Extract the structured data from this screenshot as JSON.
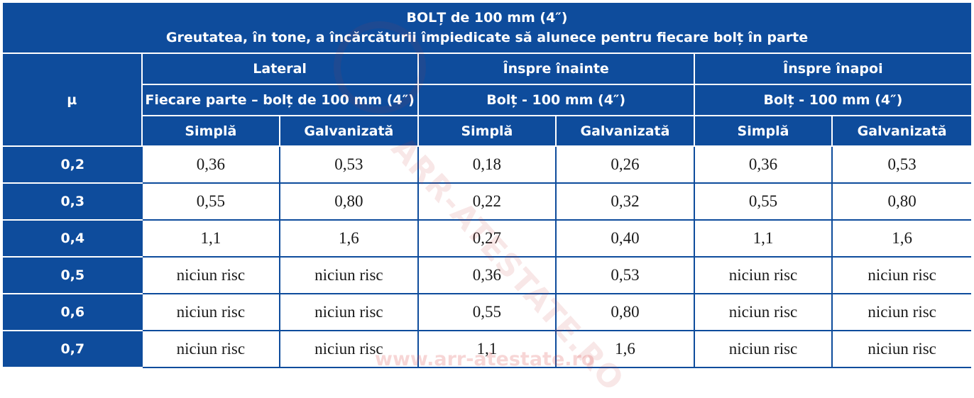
{
  "title": {
    "line1": "BOLȚ de 100 mm (4″)",
    "line2": "Greutatea, în tone, a încărcăturii împiedicate să alunece pentru fiecare bolț în parte"
  },
  "header": {
    "mu_label": "µ",
    "groups": [
      {
        "label": "Lateral",
        "sublabel": "Fiecare parte – bolț de 100 mm (4″)"
      },
      {
        "label": "Înspre înainte",
        "sublabel": "Bolț - 100 mm (4″)"
      },
      {
        "label": "Înspre înapoi",
        "sublabel": "Bolț - 100 mm (4″)"
      }
    ],
    "columns": [
      "Simplă",
      "Galvanizată",
      "Simplă",
      "Galvanizată",
      "Simplă",
      "Galvanizată"
    ]
  },
  "rows": [
    {
      "mu": "0,2",
      "values": [
        "0,36",
        "0,53",
        "0,18",
        "0,26",
        "0,36",
        "0,53"
      ]
    },
    {
      "mu": "0,3",
      "values": [
        "0,55",
        "0,80",
        "0,22",
        "0,32",
        "0,55",
        "0,80"
      ]
    },
    {
      "mu": "0,4",
      "values": [
        "1,1",
        "1,6",
        "0,27",
        "0,40",
        "1,1",
        "1,6"
      ]
    },
    {
      "mu": "0,5",
      "values": [
        "niciun risc",
        "niciun risc",
        "0,36",
        "0,53",
        "niciun risc",
        "niciun risc"
      ]
    },
    {
      "mu": "0,6",
      "values": [
        "niciun risc",
        "niciun risc",
        "0,55",
        "0,80",
        "niciun risc",
        "niciun risc"
      ]
    },
    {
      "mu": "0,7",
      "values": [
        "niciun risc",
        "niciun risc",
        "1,1",
        "1,6",
        "niciun risc",
        "niciun risc"
      ]
    }
  ],
  "watermark": {
    "diagonal": "ARR-ATESTATE.RO",
    "url": "www.arr-atestate.ro"
  },
  "colors": {
    "header_bg": "#0e4c9c",
    "header_text": "#ffffff"
  }
}
